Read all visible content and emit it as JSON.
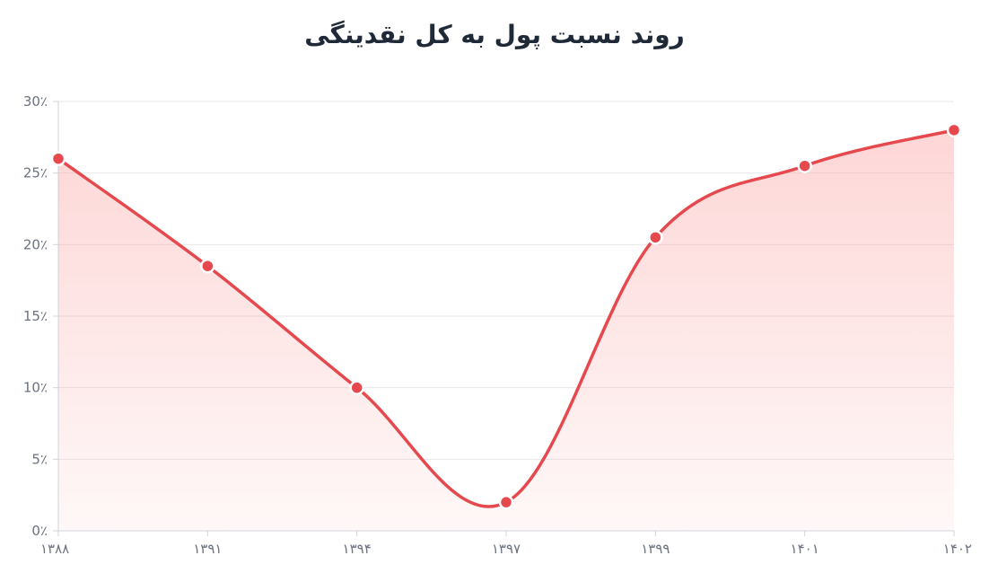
{
  "chart_data": {
    "type": "area",
    "title": "روند نسبت پول به کل نقدینگی",
    "categories": [
      "۱۳۸۸",
      "۱۳۹۱",
      "۱۳۹۴",
      "۱۳۹۷",
      "۱۳۹۹",
      "۱۴۰۱",
      "۱۴۰۲"
    ],
    "values": [
      26,
      18.5,
      10,
      2,
      20.5,
      25.5,
      28
    ],
    "ylim": [
      0,
      30
    ],
    "yticks": [
      "0٪",
      "5٪",
      "10٪",
      "15٪",
      "20٪",
      "25٪",
      "30٪"
    ],
    "grid": true,
    "legend": "none",
    "colors": {
      "line": "#e5484d",
      "fill": "#fca5a5",
      "grid": "#e5e7eb",
      "axis": "#d1d5db",
      "point_stroke": "#ffffff"
    }
  }
}
